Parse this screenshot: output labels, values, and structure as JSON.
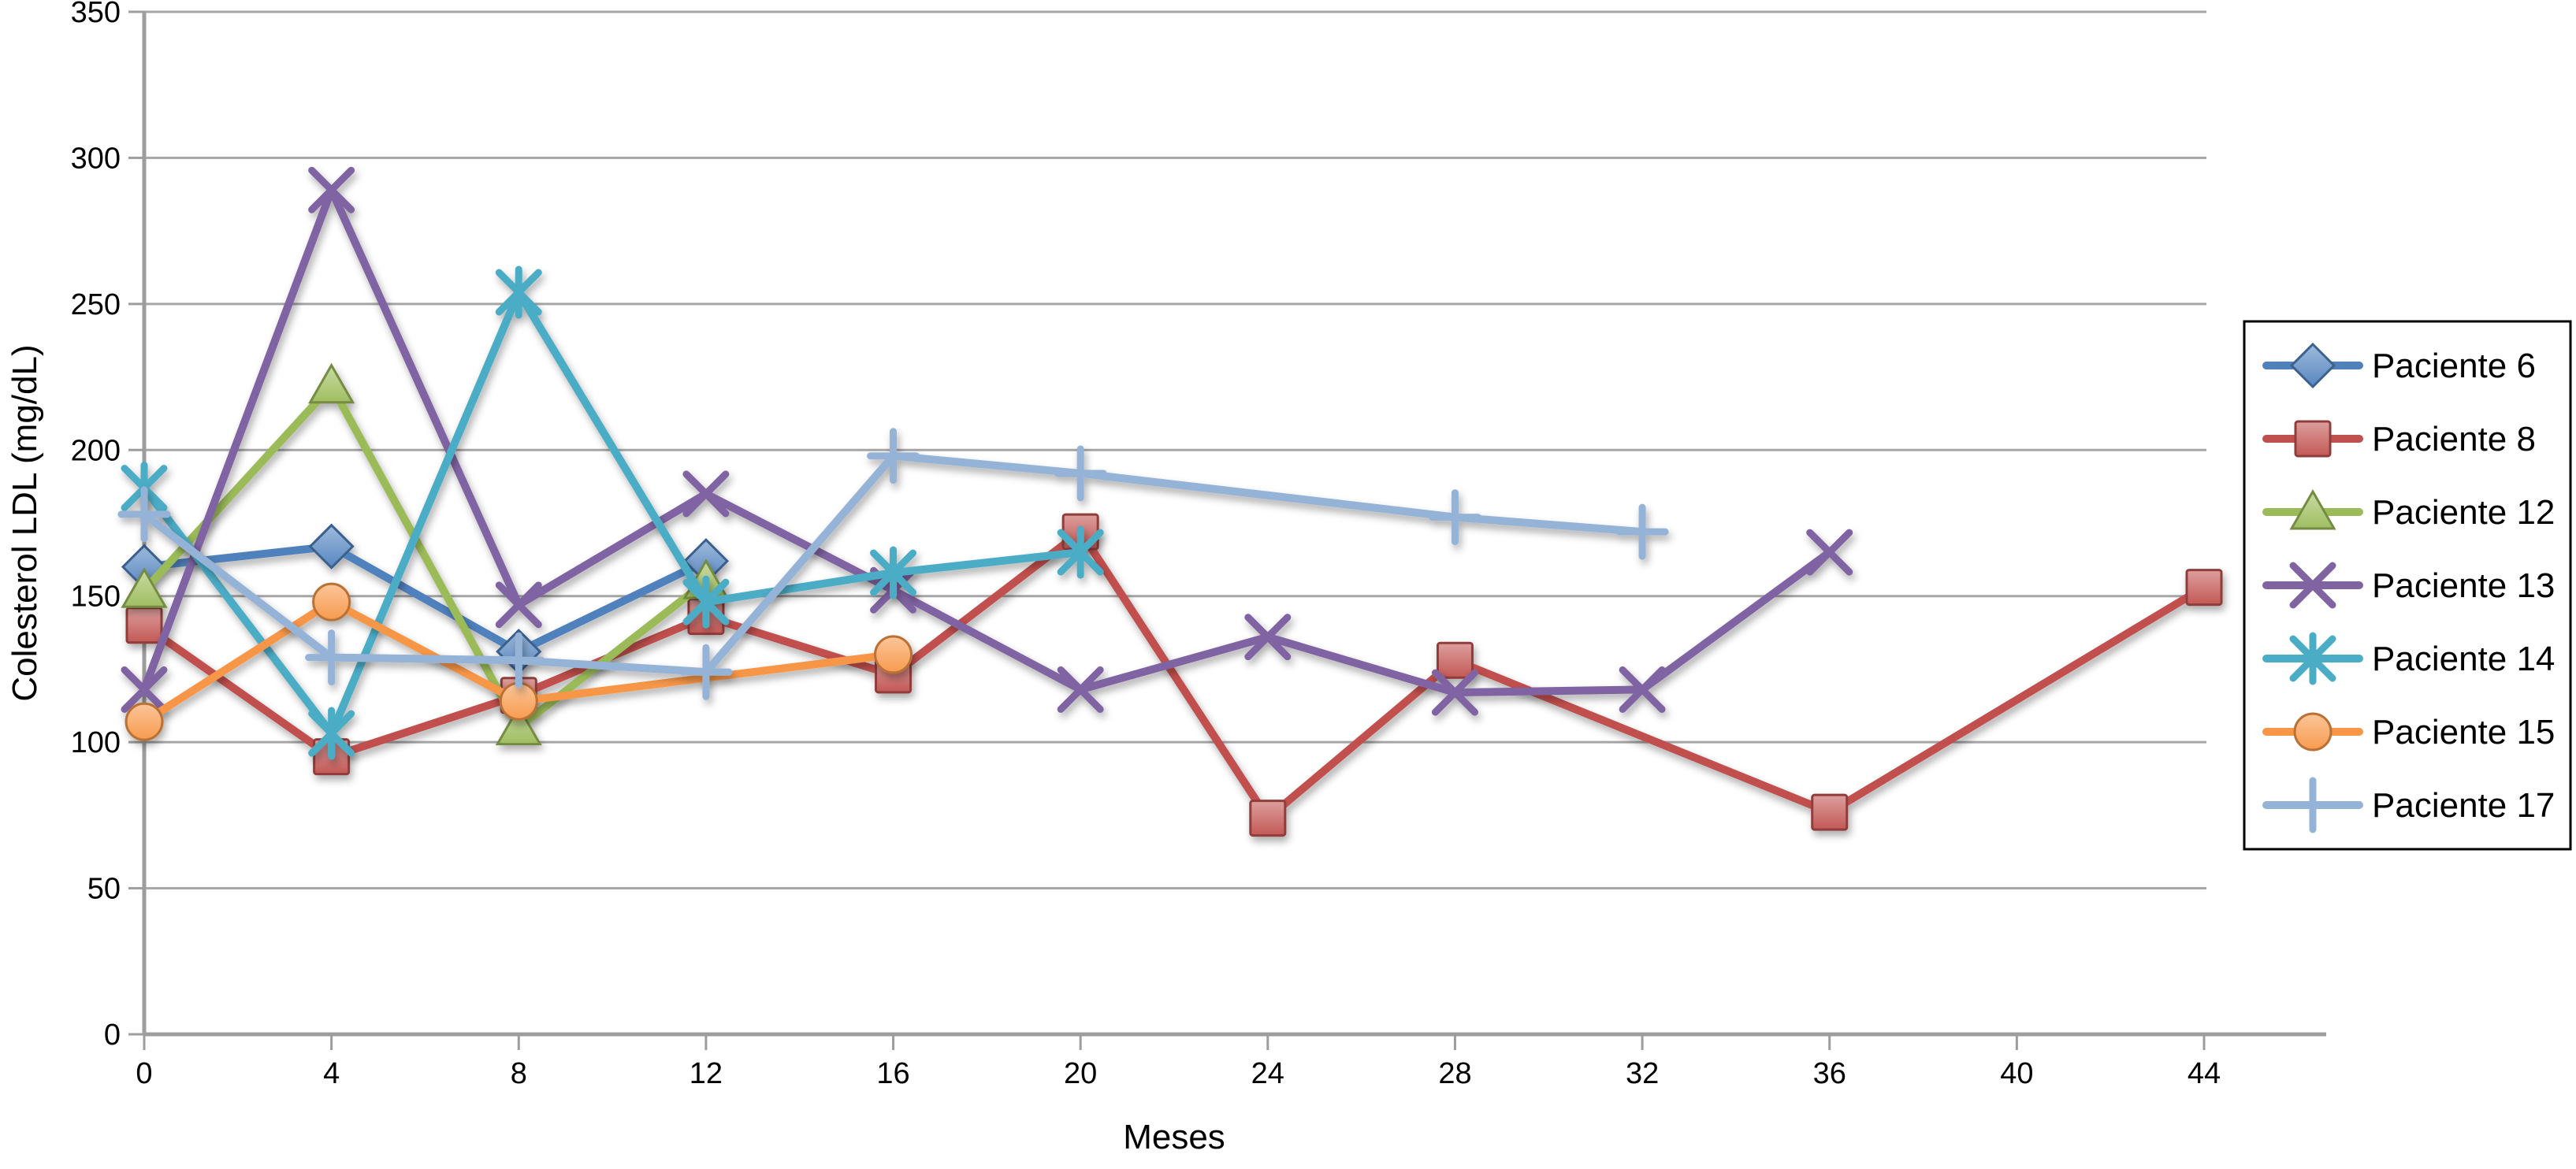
{
  "chart_data": {
    "type": "line",
    "title": "",
    "xlabel": "Meses",
    "ylabel": "Colesterol LDL (mg/dL)",
    "xlim": [
      0,
      44
    ],
    "ylim": [
      0,
      350
    ],
    "x_ticks": [
      0,
      4,
      8,
      12,
      16,
      20,
      24,
      28,
      32,
      36,
      40,
      44
    ],
    "y_ticks": [
      0,
      50,
      100,
      150,
      200,
      250,
      300,
      350
    ],
    "grid": "horizontal",
    "legend_position": "right",
    "axis_color": "#9d9d9d",
    "gridline_color": "#a6a6a6",
    "series": [
      {
        "name": "Paciente 6",
        "color": "#4F81BD",
        "marker": "diamond",
        "points": [
          [
            0,
            160
          ],
          [
            4,
            167
          ],
          [
            8,
            131
          ],
          [
            12,
            162
          ]
        ]
      },
      {
        "name": "Paciente 8",
        "color": "#C0504D",
        "marker": "square",
        "points": [
          [
            0,
            140
          ],
          [
            4,
            95
          ],
          [
            8,
            116
          ],
          [
            12,
            143
          ],
          [
            16,
            123
          ],
          [
            20,
            172
          ],
          [
            24,
            74
          ],
          [
            28,
            128
          ],
          [
            36,
            76
          ],
          [
            44,
            153
          ]
        ]
      },
      {
        "name": "Paciente 12",
        "color": "#9BBB59",
        "marker": "triangle",
        "points": [
          [
            0,
            152
          ],
          [
            4,
            222
          ],
          [
            8,
            105
          ],
          [
            12,
            155
          ]
        ]
      },
      {
        "name": "Paciente 13",
        "color": "#8064A2",
        "marker": "x",
        "points": [
          [
            0,
            118
          ],
          [
            4,
            289
          ],
          [
            8,
            147
          ],
          [
            12,
            185
          ],
          [
            16,
            152
          ],
          [
            20,
            118
          ],
          [
            24,
            136
          ],
          [
            28,
            117
          ],
          [
            32,
            118
          ],
          [
            36,
            165
          ]
        ]
      },
      {
        "name": "Paciente 14",
        "color": "#4BACC6",
        "marker": "asterisk",
        "points": [
          [
            0,
            187
          ],
          [
            4,
            103
          ],
          [
            8,
            254
          ],
          [
            12,
            148
          ],
          [
            16,
            158
          ],
          [
            20,
            165
          ]
        ]
      },
      {
        "name": "Paciente 15",
        "color": "#F79646",
        "marker": "circle",
        "points": [
          [
            0,
            107
          ],
          [
            4,
            148
          ],
          [
            8,
            114
          ],
          [
            16,
            130
          ]
        ]
      },
      {
        "name": "Paciente 17",
        "color": "#95B3D7",
        "marker": "plus",
        "points": [
          [
            0,
            178
          ],
          [
            4,
            129
          ],
          [
            8,
            128
          ],
          [
            12,
            124
          ],
          [
            16,
            198
          ],
          [
            20,
            192
          ],
          [
            28,
            177
          ],
          [
            32,
            172
          ]
        ]
      }
    ]
  }
}
